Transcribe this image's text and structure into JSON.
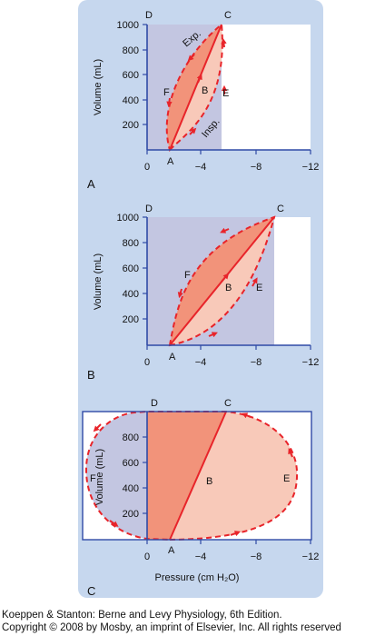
{
  "panels": [
    {
      "id": "A",
      "ylabel": "Volume (mL)",
      "yticks": [
        "1000",
        "800",
        "600",
        "400",
        "200"
      ],
      "xticks": [
        "0",
        "−4",
        "−8",
        "−12"
      ],
      "points": {
        "D": "D",
        "C": "C",
        "A": "A",
        "B": "B",
        "E": "E",
        "F": "F"
      },
      "annotations": {
        "exp": "Exp.",
        "insp": "Insp."
      }
    },
    {
      "id": "B",
      "ylabel": "Volume (mL)",
      "yticks": [
        "1000",
        "800",
        "600",
        "400",
        "200"
      ],
      "xticks": [
        "0",
        "−4",
        "−8",
        "−12"
      ],
      "points": {
        "D": "D",
        "C": "C",
        "A": "A",
        "B": "B",
        "E": "E",
        "F": "F"
      }
    },
    {
      "id": "C",
      "ylabel": "Volume (mL)",
      "yticks": [
        "800",
        "600",
        "400",
        "200"
      ],
      "xticks": [
        "0",
        "−4",
        "−8",
        "−12"
      ],
      "xlabel": "Pressure (cm H₂O)",
      "points": {
        "D": "D",
        "C": "C",
        "A": "A",
        "B": "B",
        "E": "E",
        "F": "F"
      }
    }
  ],
  "caption": {
    "line1": "Koeppen & Stanton: Berne and Levy Physiology, 6th Edition.",
    "line2": "Copyright © 2008 by Mosby, an imprint of Elsevier, Inc. All rights reserved"
  },
  "colors": {
    "panel_background": "#c6d7ee",
    "plot_area": "#ffffff",
    "lavender_region": "#c3c6e1",
    "salmon_region": "#f2937a",
    "pink_region": "#f8c9b9",
    "loop_line": "#e8242a",
    "axis": "#2f4aa6"
  }
}
